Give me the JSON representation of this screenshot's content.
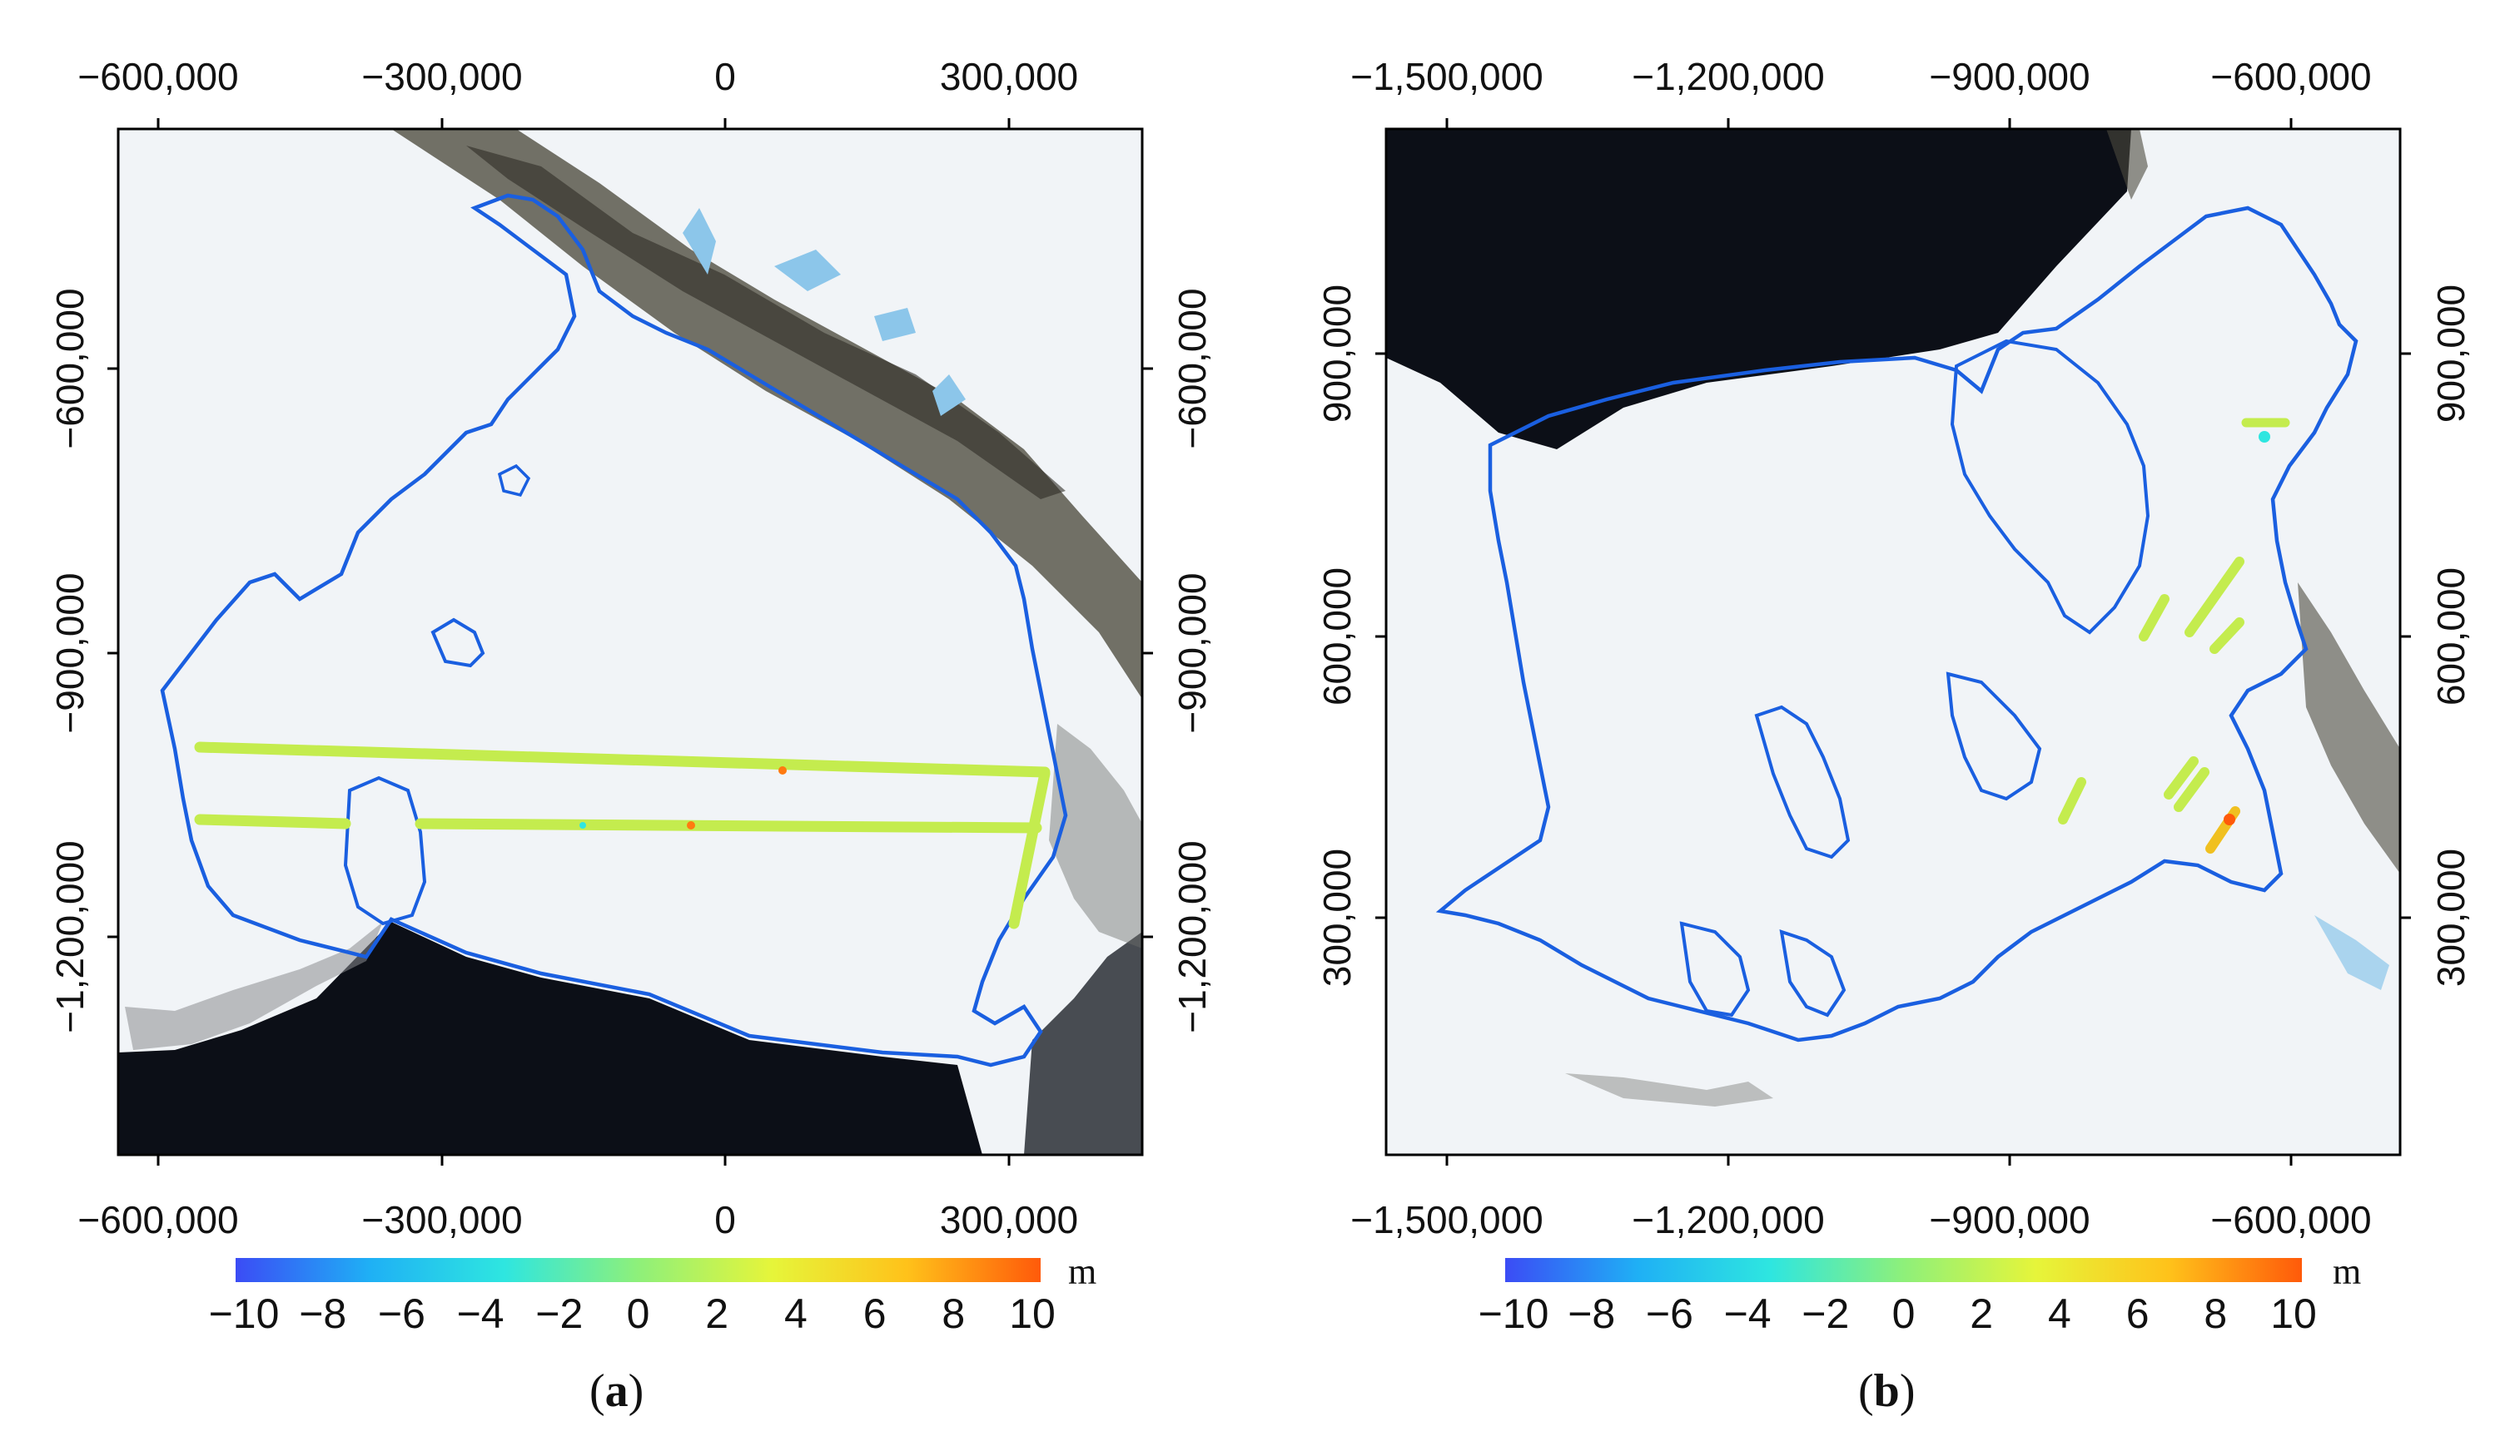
{
  "panels": [
    {
      "label_open": "(",
      "label_letter": "a",
      "label_close": ")",
      "x_ticks": [
        "−600,000",
        "−300,000",
        "0",
        "300,000"
      ],
      "y_ticks": [
        "−600,000",
        "−900,000",
        "−1,200,000"
      ],
      "colorbar": {
        "ticks": [
          "−10",
          "−8",
          "−6",
          "−4",
          "−2",
          "0",
          "2",
          "4",
          "6",
          "8",
          "10"
        ],
        "unit": "m",
        "range": [
          -10,
          10
        ],
        "colors": [
          "#3b4cf5",
          "#1fb0f5",
          "#2ee6e0",
          "#8ef07a",
          "#e6f53a",
          "#ffc21a",
          "#ff5a0a"
        ]
      }
    },
    {
      "label_open": "(",
      "label_letter": "b",
      "label_close": ")",
      "x_ticks": [
        "−1,500,000",
        "−1,200,000",
        "−900,000",
        "−600,000"
      ],
      "y_ticks": [
        "900,000",
        "600,000",
        "300,000"
      ],
      "colorbar": {
        "ticks": [
          "−10",
          "−8",
          "−6",
          "−4",
          "−2",
          "0",
          "2",
          "4",
          "6",
          "8",
          "10"
        ],
        "unit": "m",
        "range": [
          -10,
          10
        ],
        "colors": [
          "#3b4cf5",
          "#1fb0f5",
          "#2ee6e0",
          "#8ef07a",
          "#e6f53a",
          "#ffc21a",
          "#ff5a0a"
        ]
      }
    }
  ],
  "map_colors": {
    "ice": "#f1f4f7",
    "ocean": "#0c0f17",
    "rock": "#4d4a3e",
    "melt": "#8cc6ea",
    "boundary": "#1a5fe0",
    "track": "#c4ec4e"
  }
}
